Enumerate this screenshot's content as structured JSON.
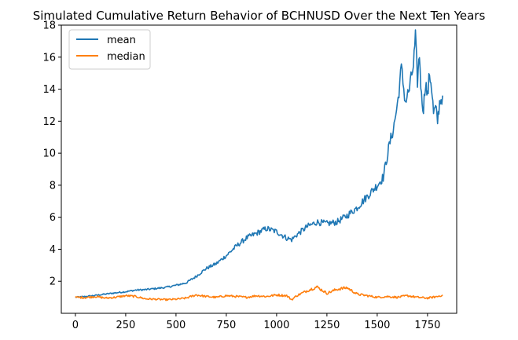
{
  "chart_data": {
    "type": "line",
    "title": "Simulated Cumulative Return Behavior of BCHNUSD Over the Next Ten Years",
    "xlabel": "",
    "ylabel": "",
    "xlim": [
      -70,
      1895
    ],
    "ylim": [
      0,
      18
    ],
    "x_ticks": [
      0,
      250,
      500,
      750,
      1000,
      1250,
      1500,
      1750
    ],
    "y_ticks": [
      2,
      4,
      6,
      8,
      10,
      12,
      14,
      16,
      18
    ],
    "grid": false,
    "legend": "top-left",
    "series": [
      {
        "name": "mean",
        "color": "#1f77b4",
        "x": [
          0,
          50,
          100,
          150,
          200,
          250,
          300,
          350,
          400,
          450,
          500,
          550,
          600,
          650,
          700,
          750,
          800,
          850,
          900,
          950,
          1000,
          1050,
          1075,
          1100,
          1150,
          1200,
          1250,
          1300,
          1350,
          1400,
          1450,
          1500,
          1530,
          1560,
          1580,
          1600,
          1620,
          1640,
          1660,
          1680,
          1690,
          1700,
          1710,
          1720,
          1730,
          1740,
          1750,
          1760,
          1770,
          1780,
          1790,
          1800,
          1810,
          1825
        ],
        "y": [
          1.0,
          1.05,
          1.12,
          1.2,
          1.28,
          1.35,
          1.45,
          1.48,
          1.55,
          1.62,
          1.75,
          1.9,
          2.3,
          2.8,
          3.1,
          3.6,
          4.2,
          4.7,
          5.0,
          5.3,
          5.1,
          4.7,
          4.6,
          4.9,
          5.4,
          5.7,
          5.6,
          5.7,
          6.1,
          6.6,
          7.3,
          8.0,
          8.5,
          10.5,
          11.5,
          13.0,
          15.3,
          13.2,
          14.0,
          15.5,
          17.2,
          14.5,
          16.2,
          13.5,
          12.8,
          14.5,
          13.5,
          15.0,
          14.2,
          12.5,
          12.8,
          12.0,
          13.2,
          13.6
        ]
      },
      {
        "name": "median",
        "color": "#ff7f0e",
        "x": [
          0,
          50,
          100,
          150,
          200,
          250,
          300,
          350,
          400,
          450,
          500,
          550,
          600,
          650,
          700,
          750,
          800,
          850,
          900,
          950,
          1000,
          1050,
          1075,
          1100,
          1150,
          1200,
          1250,
          1300,
          1350,
          1400,
          1450,
          1500,
          1550,
          1600,
          1650,
          1700,
          1750,
          1800,
          1825
        ],
        "y": [
          1.0,
          0.98,
          1.05,
          0.95,
          1.0,
          1.1,
          1.05,
          0.9,
          0.88,
          0.85,
          0.88,
          0.95,
          1.15,
          1.05,
          1.0,
          1.1,
          1.05,
          1.0,
          1.1,
          1.05,
          1.15,
          1.1,
          0.85,
          1.1,
          1.4,
          1.65,
          1.25,
          1.5,
          1.6,
          1.2,
          1.1,
          1.0,
          1.05,
          1.0,
          1.1,
          1.0,
          0.95,
          1.05,
          1.15
        ]
      }
    ]
  }
}
